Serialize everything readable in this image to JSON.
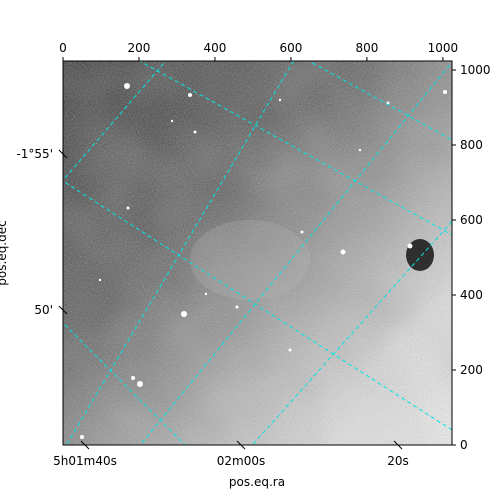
{
  "chart_data": {
    "type": "heatmap",
    "title": "",
    "xlabel": "pos.eq.ra",
    "ylabel": "pos.eq.dec",
    "pixel_axes": {
      "x_range": [
        0,
        1024
      ],
      "y_range": [
        0,
        1024
      ],
      "top_ticks": [
        "0",
        "200",
        "400",
        "600",
        "800",
        "1000"
      ],
      "top_tick_values": [
        0,
        200,
        400,
        600,
        800,
        1000
      ],
      "right_ticks": [
        "0",
        "200",
        "400",
        "600",
        "800",
        "1000"
      ],
      "right_tick_values": [
        0,
        200,
        400,
        600,
        800,
        1000
      ]
    },
    "world_axes": {
      "ra_ticks": [
        "5h01m40s",
        "02m00s",
        "20s"
      ],
      "dec_ticks": [
        "-1°55'",
        "50'"
      ]
    },
    "colormap": "gray",
    "grid": true,
    "grid_color": "#00e5e5",
    "grid_style": "dashed",
    "image_description": "grayscale sky image, darker toward upper-left, bright region toward lower-right, scattered point sources"
  }
}
